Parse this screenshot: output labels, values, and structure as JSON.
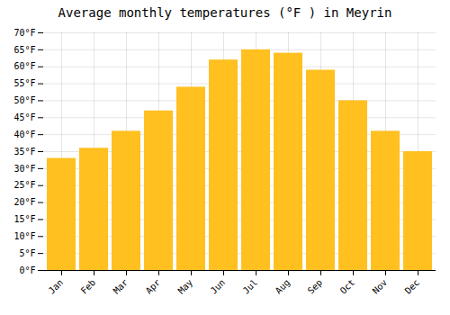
{
  "chart_data": {
    "type": "bar",
    "title": "Average monthly temperatures (°F ) in Meyrin",
    "categories": [
      "Jan",
      "Feb",
      "Mar",
      "Apr",
      "May",
      "Jun",
      "Jul",
      "Aug",
      "Sep",
      "Oct",
      "Nov",
      "Dec"
    ],
    "values": [
      33,
      36,
      41,
      47,
      54,
      62,
      65,
      64,
      59,
      50,
      41,
      35
    ],
    "color": "#FFC020",
    "ylim": [
      0,
      70
    ],
    "yticks": [
      {
        "value": 0,
        "label": "0°F"
      },
      {
        "value": 5,
        "label": "5°F"
      },
      {
        "value": 10,
        "label": "10°F"
      },
      {
        "value": 15,
        "label": "15°F"
      },
      {
        "value": 20,
        "label": "20°F"
      },
      {
        "value": 25,
        "label": "25°F"
      },
      {
        "value": 30,
        "label": "30°F"
      },
      {
        "value": 35,
        "label": "35°F"
      },
      {
        "value": 40,
        "label": "40°F"
      },
      {
        "value": 45,
        "label": "45°F"
      },
      {
        "value": 50,
        "label": "50°F"
      },
      {
        "value": 55,
        "label": "55°F"
      },
      {
        "value": 60,
        "label": "60°F"
      },
      {
        "value": 65,
        "label": "65°F"
      },
      {
        "value": 70,
        "label": "70°F"
      }
    ],
    "grid": true
  }
}
